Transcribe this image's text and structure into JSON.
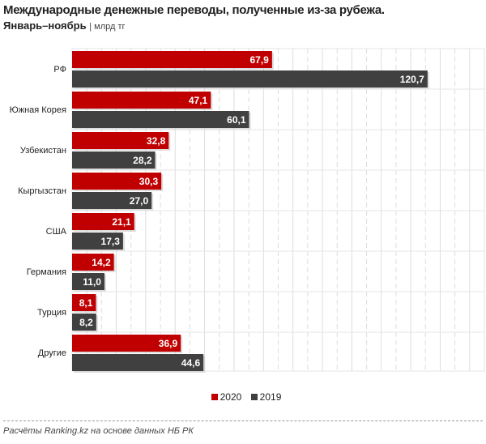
{
  "chart_data": {
    "type": "bar",
    "orientation": "horizontal",
    "title": "Международные денежные переводы, полученные из-за рубежа.",
    "subtitle": "Январь–ноябрь",
    "unit": "млрд тг",
    "categories": [
      "РФ",
      "Южная Корея",
      "Узбекистан",
      "Кыргызстан",
      "США",
      "Германия",
      "Турция",
      "Другие"
    ],
    "series": [
      {
        "name": "2020",
        "color": "#c00000",
        "values": [
          67.9,
          47.1,
          32.8,
          30.3,
          21.1,
          14.2,
          8.1,
          36.9
        ],
        "labels": [
          "67,9",
          "47,1",
          "32,8",
          "30,3",
          "21,1",
          "14,2",
          "8,1",
          "36,9"
        ]
      },
      {
        "name": "2019",
        "color": "#404040",
        "values": [
          120.7,
          60.1,
          28.2,
          27.0,
          17.3,
          11.0,
          8.2,
          44.6
        ],
        "labels": [
          "120,7",
          "60,1",
          "28,2",
          "27,0",
          "17,3",
          "11,0",
          "8,2",
          "44,6"
        ]
      }
    ],
    "xlim": [
      0,
      140
    ],
    "grid": true,
    "legend": "bottom"
  },
  "source": "Расчёты Ranking.kz на основе данных  НБ РК"
}
